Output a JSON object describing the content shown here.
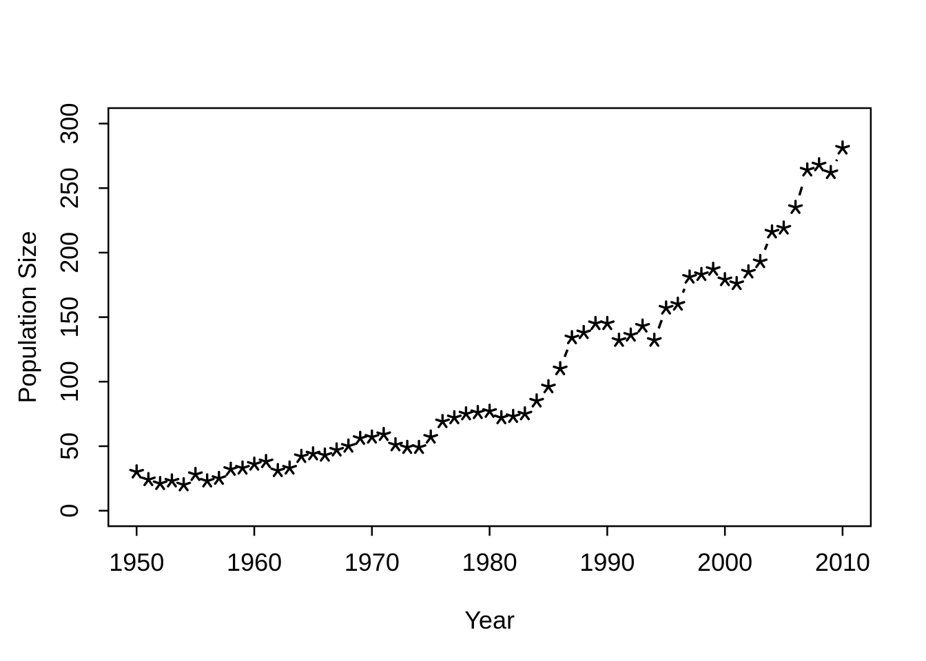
{
  "page": {
    "background": "#ffffff",
    "title": ""
  },
  "chart_data": {
    "type": "line",
    "title": "",
    "xlabel": "Year",
    "ylabel": "Population Size",
    "marker": "asterisk",
    "marker_color": "#000000",
    "line_style": "dashed",
    "line_color": "#000000",
    "grid": false,
    "legend": null,
    "xlim": [
      1947.6,
      2012.4
    ],
    "ylim": [
      -12,
      312
    ],
    "xticks": [
      1950,
      1960,
      1970,
      1980,
      1990,
      2000,
      2010
    ],
    "yticks": [
      0,
      50,
      100,
      150,
      200,
      250,
      300
    ],
    "x": [
      1950,
      1951,
      1952,
      1953,
      1954,
      1955,
      1956,
      1957,
      1958,
      1959,
      1960,
      1961,
      1962,
      1963,
      1964,
      1965,
      1966,
      1967,
      1968,
      1969,
      1970,
      1971,
      1972,
      1973,
      1974,
      1975,
      1976,
      1977,
      1978,
      1979,
      1980,
      1981,
      1982,
      1983,
      1984,
      1985,
      1986,
      1987,
      1988,
      1989,
      1990,
      1991,
      1992,
      1993,
      1994,
      1995,
      1996,
      1997,
      1998,
      1999,
      2000,
      2001,
      2002,
      2003,
      2004,
      2005,
      2006,
      2007,
      2008,
      2009,
      2010
    ],
    "values": [
      30,
      24,
      21,
      23,
      20,
      28,
      23,
      25,
      32,
      33,
      36,
      38,
      31,
      33,
      42,
      44,
      43,
      47,
      50,
      56,
      57,
      59,
      51,
      49,
      49,
      57,
      69,
      72,
      75,
      76,
      77,
      72,
      73,
      75,
      85,
      96,
      110,
      134,
      138,
      145,
      145,
      132,
      136,
      143,
      132,
      157,
      160,
      181,
      183,
      187,
      179,
      176,
      185,
      193,
      216,
      219,
      235,
      264,
      268,
      262,
      281
    ]
  }
}
